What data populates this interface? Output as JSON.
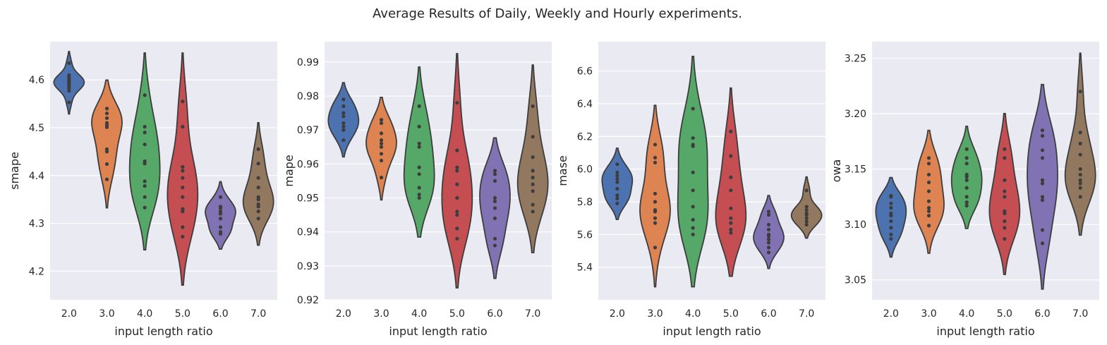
{
  "title": "Average Results of Daily, Weekly and Hourly experiments.",
  "chart_data": [
    {
      "type": "violin",
      "xlabel": "input length ratio",
      "ylabel": "smape",
      "categories": [
        "2.0",
        "3.0",
        "4.0",
        "5.0",
        "6.0",
        "7.0"
      ],
      "ylim": [
        4.14,
        4.68
      ],
      "yticks": [
        4.2,
        4.3,
        4.4,
        4.5,
        4.6
      ],
      "ytick_labels": [
        "4.2",
        "4.3",
        "4.4",
        "4.5",
        "4.6"
      ],
      "colors": [
        "#4c72b0",
        "#dd8452",
        "#55a868",
        "#c44e52",
        "#8172b3",
        "#937860"
      ],
      "points": [
        [
          4.553,
          4.577,
          4.583,
          4.588,
          4.592,
          4.595,
          4.598,
          4.601,
          4.605,
          4.61,
          4.635
        ],
        [
          4.392,
          4.424,
          4.45,
          4.455,
          4.501,
          4.505,
          4.51,
          4.52,
          4.53,
          4.54
        ],
        [
          4.333,
          4.355,
          4.378,
          4.388,
          4.425,
          4.43,
          4.465,
          4.49,
          4.502,
          4.568
        ],
        [
          4.272,
          4.292,
          4.325,
          4.33,
          4.355,
          4.375,
          4.395,
          4.41,
          4.418,
          4.502,
          4.555
        ],
        [
          4.278,
          4.282,
          4.292,
          4.31,
          4.32,
          4.325,
          4.332,
          4.335,
          4.355
        ],
        [
          4.31,
          4.325,
          4.335,
          4.34,
          4.35,
          4.355,
          4.375,
          4.395,
          4.425,
          4.455
        ]
      ]
    },
    {
      "type": "violin",
      "xlabel": "input length ratio",
      "ylabel": "mape",
      "categories": [
        "2.0",
        "3.0",
        "4.0",
        "5.0",
        "6.0",
        "7.0"
      ],
      "ylim": [
        0.92,
        0.996
      ],
      "yticks": [
        0.92,
        0.93,
        0.94,
        0.95,
        0.96,
        0.97,
        0.98,
        0.99
      ],
      "ytick_labels": [
        "0.92",
        "0.93",
        "0.94",
        "0.95",
        "0.96",
        "0.97",
        "0.98",
        "0.99"
      ],
      "colors": [
        "#4c72b0",
        "#dd8452",
        "#55a868",
        "#c44e52",
        "#8172b3",
        "#937860"
      ],
      "points": [
        [
          0.967,
          0.97,
          0.971,
          0.972,
          0.974,
          0.975,
          0.977,
          0.979
        ],
        [
          0.956,
          0.961,
          0.963,
          0.965,
          0.966,
          0.967,
          0.969,
          0.972,
          0.973
        ],
        [
          0.95,
          0.951,
          0.953,
          0.957,
          0.959,
          0.965,
          0.966,
          0.971,
          0.977
        ],
        [
          0.938,
          0.941,
          0.945,
          0.946,
          0.95,
          0.954,
          0.958,
          0.959,
          0.964,
          0.978
        ],
        [
          0.936,
          0.938,
          0.944,
          0.947,
          0.949,
          0.95,
          0.955,
          0.957,
          0.958
        ],
        [
          0.946,
          0.948,
          0.952,
          0.954,
          0.956,
          0.958,
          0.962,
          0.968,
          0.977
        ]
      ]
    },
    {
      "type": "violin",
      "xlabel": "input length ratio",
      "ylabel": "mase",
      "categories": [
        "2.0",
        "3.0",
        "4.0",
        "5.0",
        "6.0",
        "7.0"
      ],
      "ylim": [
        5.2,
        6.78
      ],
      "yticks": [
        5.4,
        5.6,
        5.8,
        6.0,
        6.2,
        6.4,
        6.6
      ],
      "ytick_labels": [
        "5.4",
        "5.6",
        "5.8",
        "6.0",
        "6.2",
        "6.4",
        "6.6"
      ],
      "colors": [
        "#4c72b0",
        "#dd8452",
        "#55a868",
        "#c44e52",
        "#8172b3",
        "#937860"
      ],
      "points": [
        [
          5.79,
          5.82,
          5.84,
          5.88,
          5.92,
          5.94,
          5.96,
          5.98,
          6.03
        ],
        [
          5.52,
          5.67,
          5.7,
          5.74,
          5.75,
          5.8,
          5.85,
          6.04,
          6.07,
          6.15
        ],
        [
          5.6,
          5.64,
          5.69,
          5.77,
          5.87,
          5.98,
          6.14,
          6.15,
          6.19,
          6.37
        ],
        [
          5.61,
          5.63,
          5.67,
          5.7,
          5.76,
          5.87,
          5.95,
          6.08,
          6.23
        ],
        [
          5.49,
          5.52,
          5.55,
          5.57,
          5.59,
          5.6,
          5.63,
          5.66,
          5.72,
          5.74
        ],
        [
          5.66,
          5.68,
          5.7,
          5.72,
          5.73,
          5.75,
          5.77,
          5.87
        ]
      ]
    },
    {
      "type": "violin",
      "xlabel": "input length ratio",
      "ylabel": "owa",
      "categories": [
        "2.0",
        "3.0",
        "4.0",
        "5.0",
        "6.0",
        "7.0"
      ],
      "ylim": [
        3.032,
        3.265
      ],
      "yticks": [
        3.05,
        3.1,
        3.15,
        3.2,
        3.25
      ],
      "ytick_labels": [
        "3.05",
        "3.10",
        "3.15",
        "3.20",
        "3.25"
      ],
      "colors": [
        "#4c72b0",
        "#dd8452",
        "#55a868",
        "#c44e52",
        "#8172b3",
        "#937860"
      ],
      "points": [
        [
          3.087,
          3.091,
          3.097,
          3.103,
          3.108,
          3.11,
          3.115,
          3.119,
          3.125,
          3.126
        ],
        [
          3.099,
          3.108,
          3.112,
          3.115,
          3.121,
          3.13,
          3.138,
          3.145,
          3.155,
          3.16
        ],
        [
          3.117,
          3.12,
          3.125,
          3.133,
          3.14,
          3.143,
          3.145,
          3.155,
          3.16,
          3.168
        ],
        [
          3.087,
          3.097,
          3.103,
          3.11,
          3.112,
          3.125,
          3.13,
          3.14,
          3.16,
          3.168
        ],
        [
          3.083,
          3.095,
          3.122,
          3.125,
          3.137,
          3.14,
          3.16,
          3.167,
          3.18,
          3.185
        ],
        [
          3.125,
          3.133,
          3.137,
          3.14,
          3.145,
          3.15,
          3.163,
          3.173,
          3.183,
          3.22
        ]
      ]
    }
  ]
}
